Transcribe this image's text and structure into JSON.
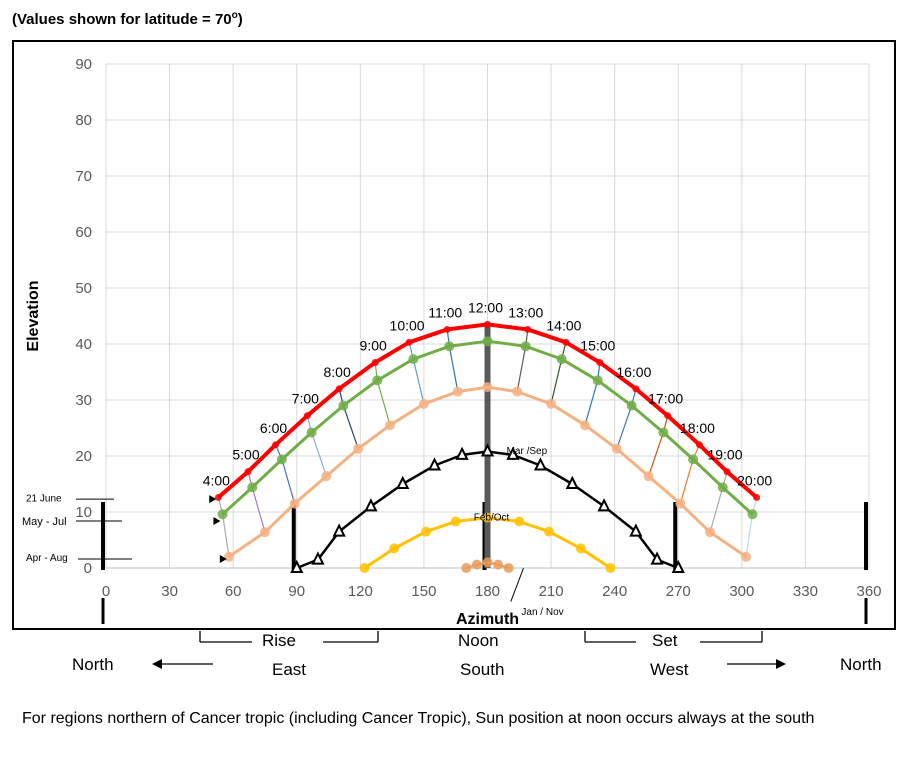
{
  "header": {
    "prefix": "(Values shown for latitude = 70",
    "sup": "o",
    "suffix": ")"
  },
  "chart_data": {
    "type": "line",
    "title": "",
    "xlabel": "Azimuth",
    "ylabel": "Elevation",
    "xlim": [
      0,
      360
    ],
    "ylim": [
      0,
      90
    ],
    "x_ticks": [
      "0",
      "30",
      "60",
      "90",
      "120",
      "150",
      "180",
      "210",
      "240",
      "270",
      "300",
      "330",
      "360"
    ],
    "y_ticks": [
      "0",
      "10",
      "20",
      "30",
      "40",
      "50",
      "60",
      "70",
      "80",
      "90"
    ],
    "grid": true,
    "series": [
      {
        "name": "21 June",
        "color": "#ff0000",
        "points": [
          [
            53,
            12.6
          ],
          [
            67,
            17.2
          ],
          [
            80,
            22
          ],
          [
            95,
            27.2
          ],
          [
            110,
            32
          ],
          [
            127,
            36.7
          ],
          [
            143,
            40.3
          ],
          [
            161,
            42.6
          ],
          [
            180,
            43.5
          ],
          [
            199,
            42.6
          ],
          [
            217,
            40.3
          ],
          [
            233,
            36.7
          ],
          [
            250,
            32
          ],
          [
            265,
            27.2
          ],
          [
            280,
            22
          ],
          [
            293,
            17.2
          ],
          [
            307,
            12.6
          ]
        ]
      },
      {
        "name": "May - Jul",
        "color": "#70ad47",
        "points": [
          [
            55,
            9.6
          ],
          [
            69,
            14.4
          ],
          [
            83,
            19.4
          ],
          [
            97,
            24.2
          ],
          [
            112,
            29
          ],
          [
            128,
            33.5
          ],
          [
            145,
            37.3
          ],
          [
            162,
            39.6
          ],
          [
            180,
            40.5
          ],
          [
            198,
            39.6
          ],
          [
            215,
            37.3
          ],
          [
            232,
            33.5
          ],
          [
            248,
            29
          ],
          [
            263,
            24.2
          ],
          [
            277,
            19.4
          ],
          [
            291,
            14.4
          ],
          [
            305,
            9.6
          ]
        ]
      },
      {
        "name": "Apr - Aug",
        "color": "#f4b183",
        "points": [
          [
            58,
            2
          ],
          [
            75,
            6.4
          ],
          [
            89,
            11.5
          ],
          [
            104,
            16.4
          ],
          [
            119,
            21.3
          ],
          [
            134,
            25.5
          ],
          [
            150,
            29.3
          ],
          [
            166,
            31.5
          ],
          [
            180,
            32.3
          ],
          [
            194,
            31.5
          ],
          [
            210,
            29.3
          ],
          [
            226,
            25.5
          ],
          [
            241,
            21.3
          ],
          [
            256,
            16.4
          ],
          [
            271,
            11.5
          ],
          [
            285,
            6.4
          ],
          [
            302,
            2
          ]
        ]
      },
      {
        "name": "Mar / Sep",
        "color": "#000000",
        "points": [
          [
            90,
            0
          ],
          [
            100,
            1.5
          ],
          [
            110,
            6.5
          ],
          [
            125,
            11
          ],
          [
            140,
            15
          ],
          [
            155,
            18.3
          ],
          [
            168,
            20.2
          ],
          [
            180,
            20.8
          ],
          [
            192,
            20.2
          ],
          [
            205,
            18.3
          ],
          [
            220,
            15
          ],
          [
            235,
            11
          ],
          [
            250,
            6.5
          ],
          [
            260,
            1.5
          ],
          [
            270,
            0
          ]
        ]
      },
      {
        "name": "Feb / Oct",
        "color": "#ffc000",
        "points": [
          [
            122,
            0
          ],
          [
            136,
            3.5
          ],
          [
            151,
            6.5
          ],
          [
            165,
            8.3
          ],
          [
            180,
            9
          ],
          [
            195,
            8.3
          ],
          [
            209,
            6.5
          ],
          [
            224,
            3.5
          ],
          [
            238,
            0
          ]
        ]
      },
      {
        "name": "Jan / Nov",
        "color": "#e89a57",
        "points": [
          [
            170,
            0
          ],
          [
            175,
            0.6
          ],
          [
            180,
            1
          ],
          [
            185,
            0.6
          ],
          [
            190,
            0
          ]
        ]
      }
    ],
    "hour_labels": [
      {
        "t": "4:00",
        "x": 53,
        "y": 12.6
      },
      {
        "t": "5:00",
        "x": 67,
        "y": 17.2
      },
      {
        "t": "6:00",
        "x": 80,
        "y": 22
      },
      {
        "t": "7:00",
        "x": 95,
        "y": 27.2
      },
      {
        "t": "8:00",
        "x": 110,
        "y": 32
      },
      {
        "t": "9:00",
        "x": 127,
        "y": 36.7
      },
      {
        "t": "10:00",
        "x": 143,
        "y": 40.3
      },
      {
        "t": "11:00",
        "x": 161,
        "y": 42.6
      },
      {
        "t": "12:00",
        "x": 180,
        "y": 43.5
      },
      {
        "t": "13:00",
        "x": 199,
        "y": 42.6
      },
      {
        "t": "14:00",
        "x": 217,
        "y": 40.3
      },
      {
        "t": "15:00",
        "x": 233,
        "y": 36.7
      },
      {
        "t": "16:00",
        "x": 250,
        "y": 32
      },
      {
        "t": "17:00",
        "x": 265,
        "y": 27.2
      },
      {
        "t": "18:00",
        "x": 280,
        "y": 22
      },
      {
        "t": "19:00",
        "x": 293,
        "y": 17.2
      },
      {
        "t": "20:00",
        "x": 307,
        "y": 12.6
      }
    ],
    "hour_line_colors": [
      "#a9a9a9",
      "#9e7bbd",
      "#4472c4",
      "#8faadc",
      "#264478",
      "#70ad47",
      "#5b9bd5",
      "#2e75b6",
      "#7f6000",
      "#595959",
      "#385723",
      "#2e75b6",
      "#4472c4",
      "#c55a11",
      "#ed7d31",
      "#a9a9a9",
      "#bdd7ee"
    ],
    "month_labels": {
      "june": "21 June",
      "may_jul": "May - Jul",
      "apr_aug": "Apr - Aug",
      "mar_sep": "Mar /Sep",
      "feb_oct": "Feb/Oct",
      "jan_nov": "Jan / Nov"
    }
  },
  "under_axis": {
    "rise": "Rise",
    "noon": "Noon",
    "set": "Set",
    "north_left": "North",
    "east": "East",
    "south": "South",
    "west": "West",
    "north_right": "North"
  },
  "footnote": "For regions northern of Cancer tropic (including Cancer Tropic), Sun position at noon occurs always at the south"
}
